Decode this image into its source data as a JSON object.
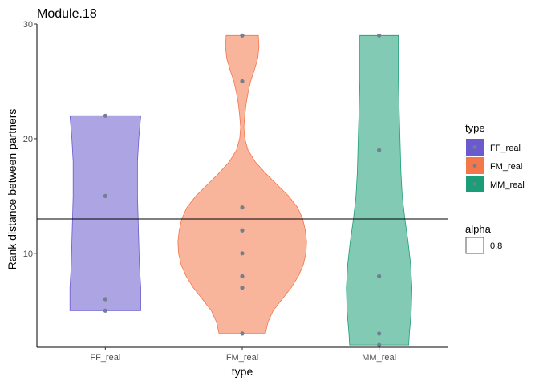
{
  "chart_data": {
    "type": "violin",
    "title": "Module.18",
    "xlabel": "type",
    "ylabel": "Rank distance between partners",
    "categories": [
      "FF_real",
      "FM_real",
      "MM_real"
    ],
    "y_ticks": [
      10,
      20,
      30
    ],
    "ylim": [
      1,
      30
    ],
    "hline": 13,
    "colors": {
      "FF_real": "#6a5acd",
      "FM_real": "#f4764b",
      "MM_real": "#1b9e77"
    },
    "point_color": "#708090",
    "series": [
      {
        "name": "FF_real",
        "values": [
          5,
          6,
          15,
          22
        ],
        "violin": [
          [
            22,
            0.55
          ],
          [
            20,
            0.52
          ],
          [
            18,
            0.5
          ],
          [
            15,
            0.5
          ],
          [
            13,
            0.51
          ],
          [
            11,
            0.52
          ],
          [
            9,
            0.53
          ],
          [
            7,
            0.55
          ],
          [
            6,
            0.55
          ],
          [
            5,
            0.55
          ]
        ]
      },
      {
        "name": "FM_real",
        "values": [
          3,
          7,
          8,
          10,
          12,
          14,
          25,
          29
        ],
        "violin": [
          [
            29,
            0.25
          ],
          [
            28,
            0.26
          ],
          [
            27,
            0.24
          ],
          [
            26,
            0.19
          ],
          [
            25,
            0.13
          ],
          [
            24,
            0.09
          ],
          [
            23,
            0.06
          ],
          [
            22,
            0.04
          ],
          [
            21,
            0.025
          ],
          [
            20,
            0.04
          ],
          [
            19,
            0.09
          ],
          [
            18,
            0.2
          ],
          [
            17,
            0.36
          ],
          [
            16,
            0.54
          ],
          [
            15,
            0.72
          ],
          [
            14,
            0.86
          ],
          [
            13,
            0.94
          ],
          [
            12,
            0.98
          ],
          [
            11,
            1.0
          ],
          [
            10,
            0.99
          ],
          [
            9,
            0.95
          ],
          [
            8,
            0.87
          ],
          [
            7,
            0.76
          ],
          [
            6,
            0.62
          ],
          [
            5,
            0.48
          ],
          [
            4,
            0.4
          ],
          [
            3,
            0.36
          ]
        ]
      },
      {
        "name": "MM_real",
        "values": [
          2,
          3,
          8,
          19,
          29
        ],
        "violin": [
          [
            29,
            0.3
          ],
          [
            27,
            0.3
          ],
          [
            25,
            0.3
          ],
          [
            23,
            0.31
          ],
          [
            21,
            0.32
          ],
          [
            19,
            0.33
          ],
          [
            17,
            0.34
          ],
          [
            15,
            0.36
          ],
          [
            13,
            0.4
          ],
          [
            11,
            0.45
          ],
          [
            9,
            0.49
          ],
          [
            7,
            0.51
          ],
          [
            5,
            0.5
          ],
          [
            3,
            0.47
          ],
          [
            2,
            0.46
          ]
        ]
      }
    ],
    "legend": {
      "position": "right",
      "type_title": "type",
      "type_items": [
        "FF_real",
        "FM_real",
        "MM_real"
      ],
      "alpha_title": "alpha",
      "alpha_value": "0.8"
    }
  }
}
